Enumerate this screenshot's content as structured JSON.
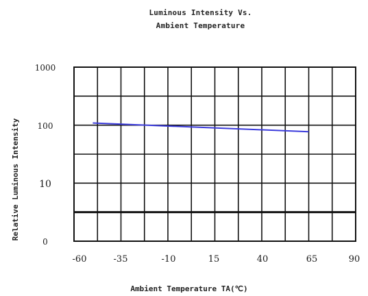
{
  "chart_data": {
    "type": "line",
    "title_lines": [
      "Luminous Intensity Vs.",
      "Ambient Temperature"
    ],
    "xlabel": "Ambient Temperature TA(℃)",
    "ylabel": "Relative Luminous Intensity",
    "x_ticks": [
      "-60",
      "-35",
      "-10",
      "15",
      "40",
      "65",
      "90"
    ],
    "x_tick_values": [
      -60,
      -35,
      -10,
      15,
      40,
      65,
      90
    ],
    "y_ticks": [
      "1000",
      "100",
      "10",
      "0"
    ],
    "xlim": [
      -60,
      90
    ],
    "y_scale": "log",
    "grid": true,
    "series": [
      {
        "color": "#3b3bdc",
        "x": [
          -50,
          65
        ],
        "y": [
          110,
          78
        ]
      }
    ]
  }
}
